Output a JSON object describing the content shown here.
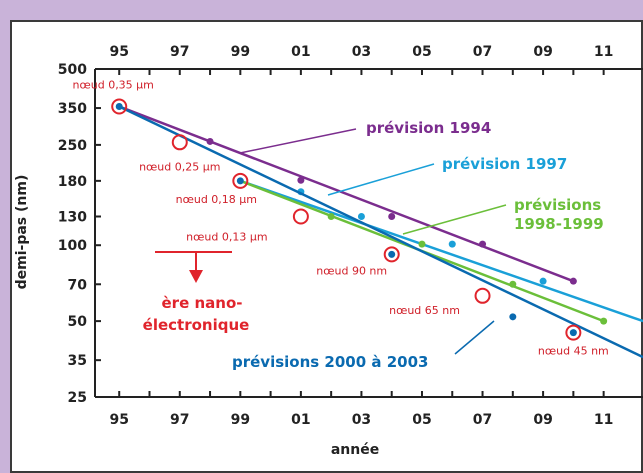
{
  "chart_data": {
    "type": "line",
    "xlabel": "année",
    "ylabel": "demi-pas (nm)",
    "x_ticks": [
      {
        "year": 1995,
        "label": "95"
      },
      {
        "year": 1997,
        "label": "97"
      },
      {
        "year": 1999,
        "label": "99"
      },
      {
        "year": 2001,
        "label": "01"
      },
      {
        "year": 2003,
        "label": "03"
      },
      {
        "year": 2005,
        "label": "05"
      },
      {
        "year": 2007,
        "label": "07"
      },
      {
        "year": 2009,
        "label": "09"
      },
      {
        "year": 2011,
        "label": "11"
      }
    ],
    "y_ticks": [
      {
        "value": 25,
        "label": "25"
      },
      {
        "value": 35,
        "label": "35"
      },
      {
        "value": 50,
        "label": "50"
      },
      {
        "value": 70,
        "label": "70"
      },
      {
        "value": 100,
        "label": "100"
      },
      {
        "value": 130,
        "label": "130"
      },
      {
        "value": 180,
        "label": "180"
      },
      {
        "value": 250,
        "label": "250"
      },
      {
        "value": 350,
        "label": "350"
      },
      {
        "value": 500,
        "label": "500"
      }
    ],
    "xlim": [
      1994.2,
      2012.3
    ],
    "ylim": [
      25,
      500
    ],
    "yscale": "log",
    "series": [
      {
        "name": "prévision 1994",
        "color": "#7b2d8e",
        "line": [
          [
            1995,
            355
          ],
          [
            2010,
            72
          ]
        ],
        "points": [
          [
            1998,
            258
          ],
          [
            2001,
            181
          ],
          [
            2004,
            130
          ],
          [
            2007,
            101
          ],
          [
            2010,
            72
          ]
        ]
      },
      {
        "name": "prévision 1997",
        "color": "#1aa0d8",
        "line": [
          [
            1999,
            180
          ],
          [
            2012.3,
            50
          ]
        ],
        "points": [
          [
            2001,
            163
          ],
          [
            2003,
            130
          ],
          [
            2006,
            101
          ],
          [
            2009,
            72
          ]
        ]
      },
      {
        "name": "prévisions 1998-1999",
        "color": "#6bbf3a",
        "line": [
          [
            1999,
            180
          ],
          [
            2011,
            50
          ]
        ],
        "points": [
          [
            2002,
            130
          ],
          [
            2005,
            101
          ],
          [
            2008,
            70
          ],
          [
            2011,
            50
          ]
        ]
      },
      {
        "name": "prévisions 2000 à 2003",
        "color": "#0a6ab0",
        "line": [
          [
            1995,
            355
          ],
          [
            2012.3,
            36
          ]
        ],
        "points": [
          [
            1995,
            355
          ],
          [
            1999,
            180
          ],
          [
            2004,
            92
          ],
          [
            2008,
            52
          ],
          [
            2010,
            45
          ]
        ]
      }
    ],
    "nodes": [
      {
        "label": "nœud 0,35 µm",
        "year": 1995,
        "value": 355
      },
      {
        "label": "nœud 0,25 µm",
        "year": 1997,
        "value": 256
      },
      {
        "label": "nœud 0,18 µm",
        "year": 1999,
        "value": 180
      },
      {
        "label": "nœud 0,13 µm",
        "year": 2001,
        "value": 130
      },
      {
        "label": "nœud 90 nm",
        "year": 2004,
        "value": 92
      },
      {
        "label": "nœud 65 nm",
        "year": 2007,
        "value": 63
      },
      {
        "label": "nœud 45 nm",
        "year": 2010,
        "value": 45
      }
    ],
    "annotations": {
      "era_line1": "ère nano-",
      "era_line2": "électronique",
      "p1998_line1": "prévisions",
      "p1998_line2": "1998-1999"
    }
  }
}
